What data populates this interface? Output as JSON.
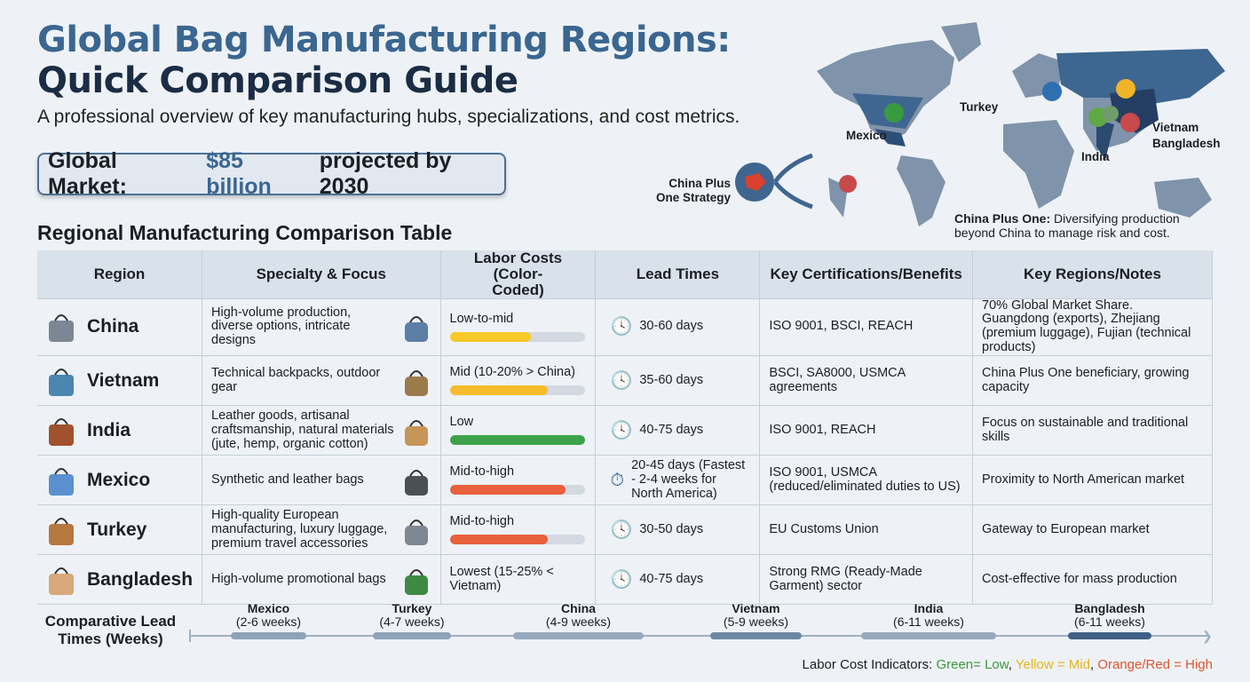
{
  "header": {
    "title_line1": "Global Bag Manufacturing Regions:",
    "title_line2": "Quick Comparison Guide",
    "subtitle": "A professional overview of key manufacturing hubs, specializations, and cost metrics."
  },
  "market": {
    "prefix": "Global Market:",
    "highlight": "$85 billion",
    "suffix": "projected by 2030"
  },
  "map": {
    "labels": {
      "mexico": "Mexico",
      "turkey": "Turkey",
      "india": "India",
      "vietnam": "Vietnam",
      "bangladesh": "Bangladesh"
    },
    "strategy_label": "China Plus One Strategy",
    "note_bold": "China Plus One:",
    "note_text": "Diversifying production beyond China to manage risk and cost."
  },
  "table": {
    "title": "Regional Manufacturing Comparison Table",
    "headers": [
      "Region",
      "Specialty & Focus",
      "Labor Costs (Color-Coded)",
      "Lead Times",
      "Key Certifications/Benefits",
      "Key Regions/Notes"
    ],
    "rows": [
      {
        "region": "China",
        "icon": "factory-icon",
        "specialty": "High-volume production, diverse options, intricate designs",
        "labor": "Low-to-mid",
        "labor_level": 0.6,
        "labor_color": "#f6c928",
        "lead": "30-60 days",
        "certs": "ISO 9001, BSCI, REACH",
        "notes": "70% Global Market Share. Guangdong (exports), Zhejiang (premium luggage), Fujian (technical products)"
      },
      {
        "region": "Vietnam",
        "icon": "backpack-icon",
        "specialty": "Technical backpacks, outdoor gear",
        "labor": "Mid (10-20% > China)",
        "labor_level": 0.73,
        "labor_color": "#f7bc2c",
        "lead": "35-60 days",
        "certs": "BSCI, SA8000, USMCA agreements",
        "notes": "China Plus One beneficiary, growing capacity"
      },
      {
        "region": "India",
        "icon": "handbag-icon",
        "specialty": "Leather goods, artisanal craftsmanship, natural materials (jute, hemp, organic cotton)",
        "labor": "Low",
        "labor_level": 1.0,
        "labor_color": "#3da34a",
        "lead": "40-75 days",
        "certs": "ISO 9001, REACH",
        "notes": "Focus on sustainable and traditional skills"
      },
      {
        "region": "Mexico",
        "icon": "tote-bag-icon",
        "specialty": "Synthetic and leather bags",
        "labor": "Mid-to-high",
        "labor_level": 0.86,
        "labor_color": "#e8603c",
        "lead": "20-45 days (Fastest - 2-4 weeks for North America)",
        "certs": "ISO 9001, USMCA (reduced/eliminated duties to US)",
        "notes": "Proximity to North American market"
      },
      {
        "region": "Turkey",
        "icon": "suitcase-icon",
        "specialty": "High-quality European manufacturing, luxury luggage, premium travel accessories",
        "labor": "Mid-to-high",
        "labor_level": 0.73,
        "labor_color": "#e8603c",
        "lead": "30-50 days",
        "certs": "EU Customs Union",
        "notes": "Gateway to European market"
      },
      {
        "region": "Bangladesh",
        "icon": "shopping-bag-icon",
        "specialty": "High-volume promotional bags",
        "labor": "Lowest (15-25% < Vietnam)",
        "labor_level": null,
        "labor_color": "",
        "lead": "40-75 days",
        "certs": "Strong RMG (Ready-Made Garment) sector",
        "notes": "Cost-effective for mass production"
      }
    ]
  },
  "timeline": {
    "label": "Comparative Lead Times (Weeks)",
    "items": [
      {
        "region": "Mexico",
        "range": "(2-6 weeks)"
      },
      {
        "region": "Turkey",
        "range": "(4-7 weeks)"
      },
      {
        "region": "China",
        "range": "(4-9 weeks)"
      },
      {
        "region": "Vietnam",
        "range": "(5-9 weeks)"
      },
      {
        "region": "India",
        "range": "(6-11 weeks)"
      },
      {
        "region": "Bangladesh",
        "range": "(6-11 weeks)"
      }
    ]
  },
  "legend": {
    "prefix": "Labor Cost Indicators:",
    "green": "Green",
    "eq1": " = ",
    "low": "Low",
    "sep1": ", ",
    "yellow": "Yellow",
    "mid": "Mid",
    "sep2": ", ",
    "orange": "Orange/Red",
    "high": "High",
    "colors": {
      "green": "#3a9a3f",
      "yellow": "#e6b41e",
      "orange": "#e0552f"
    }
  }
}
